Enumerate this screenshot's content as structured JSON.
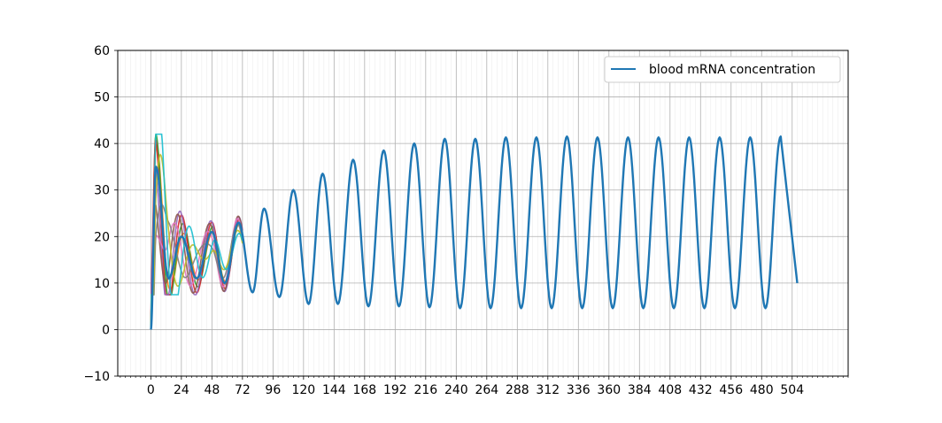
{
  "chart_data": {
    "type": "line",
    "title": "",
    "xlabel": "",
    "ylabel": "",
    "xlim": [
      -26,
      548
    ],
    "ylim": [
      -10,
      60
    ],
    "xticks": [
      0,
      24,
      48,
      72,
      96,
      120,
      144,
      168,
      192,
      216,
      240,
      264,
      288,
      312,
      336,
      360,
      384,
      408,
      432,
      456,
      480,
      504
    ],
    "yticks": [
      -10,
      0,
      10,
      20,
      30,
      40,
      50,
      60
    ],
    "x_minor_step": 4,
    "grid": true,
    "legend": {
      "position": "top-right",
      "entries": [
        {
          "label": "blood mRNA concentration",
          "color": "#1f77b4"
        }
      ]
    },
    "series": [
      {
        "name": "blood mRNA concentration",
        "color": "#1f77b4",
        "description": "damped-then-growing oscillation, period ~24, approaching amplitude ~5 to ~41",
        "peaks": [
          [
            4,
            35
          ],
          [
            24,
            20
          ],
          [
            48,
            21
          ],
          [
            69,
            23
          ],
          [
            89,
            26
          ],
          [
            112,
            30
          ],
          [
            135,
            33.5
          ],
          [
            159,
            36.5
          ],
          [
            183,
            38.5
          ],
          [
            207,
            40
          ],
          [
            231,
            41
          ],
          [
            255,
            41
          ],
          [
            279,
            41.3
          ],
          [
            303,
            41.3
          ],
          [
            327,
            41.5
          ],
          [
            351,
            41.3
          ],
          [
            375,
            41.3
          ],
          [
            399,
            41.3
          ],
          [
            423,
            41.3
          ],
          [
            447,
            41.3
          ],
          [
            471,
            41.3
          ],
          [
            495,
            41.5
          ]
        ],
        "troughs": [
          [
            0,
            0
          ],
          [
            14,
            11
          ],
          [
            36,
            11
          ],
          [
            58,
            10
          ],
          [
            80,
            8
          ],
          [
            101,
            7
          ],
          [
            124,
            5.5
          ],
          [
            147,
            5.5
          ],
          [
            171,
            5
          ],
          [
            195,
            5
          ],
          [
            219,
            4.8
          ],
          [
            243,
            4.6
          ],
          [
            267,
            4.6
          ],
          [
            291,
            4.6
          ],
          [
            315,
            4.6
          ],
          [
            339,
            4.6
          ],
          [
            363,
            4.6
          ],
          [
            387,
            4.6
          ],
          [
            411,
            4.6
          ],
          [
            435,
            4.6
          ],
          [
            459,
            4.6
          ],
          [
            483,
            4.6
          ]
        ],
        "end": [
          508,
          10
        ]
      }
    ],
    "ensemble_colors": [
      "#ff7f0e",
      "#2ca02c",
      "#d62728",
      "#9467bd",
      "#8c564b",
      "#e377c2",
      "#7f7f7f",
      "#bcbd22",
      "#17becf"
    ]
  }
}
